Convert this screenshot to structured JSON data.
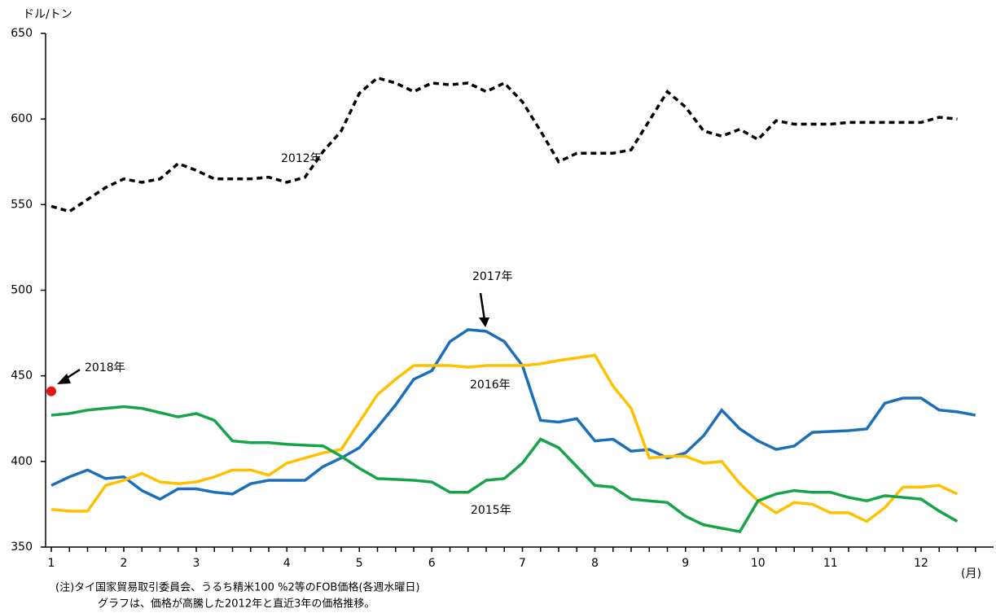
{
  "chart_data": {
    "type": "line",
    "y_label": "ドル/トン",
    "x_label": "(月)",
    "notes": [
      "(注)タイ国家貿易取引委員会、うるち精米100 %2等のFOB価格(各週水曜日)",
      "グラフは、価格が高騰した2012年と直近3年の価格推移。"
    ],
    "categories": [
      "1",
      null,
      null,
      null,
      "2",
      null,
      null,
      null,
      "3",
      null,
      null,
      null,
      null,
      "4",
      null,
      null,
      null,
      "5",
      null,
      null,
      null,
      "6",
      null,
      null,
      null,
      null,
      "7",
      null,
      null,
      null,
      "8",
      null,
      null,
      null,
      null,
      "9",
      null,
      null,
      null,
      "10",
      null,
      null,
      null,
      "11",
      null,
      null,
      null,
      null,
      "12",
      null,
      null,
      null
    ],
    "ylim": [
      350,
      650
    ],
    "yticks": [
      350,
      400,
      450,
      500,
      550,
      600,
      650
    ],
    "series": [
      {
        "name": "2012年",
        "color": "#000000",
        "dash": true,
        "values": [
          549,
          546,
          553,
          560,
          565,
          563,
          565,
          574,
          570,
          565,
          565,
          565,
          566,
          563,
          566,
          581,
          593,
          615,
          624,
          621,
          616,
          621,
          620,
          621,
          616,
          621,
          610,
          593,
          575,
          580,
          580,
          580,
          582,
          599,
          616,
          607,
          593,
          590,
          594,
          588,
          599,
          597,
          597,
          597,
          598,
          598,
          598,
          598,
          598,
          601,
          600,
          null
        ]
      },
      {
        "name": "2017年",
        "color": "#1a6fb8",
        "values": [
          386,
          391,
          395,
          390,
          391,
          383,
          378,
          384,
          384,
          382,
          381,
          387,
          389,
          389,
          389,
          397,
          402,
          408,
          420,
          433,
          448,
          453,
          470,
          477,
          476,
          470,
          456,
          424,
          423,
          425,
          412,
          413,
          406,
          407,
          402,
          405,
          415,
          430,
          419,
          412,
          407,
          409,
          417,
          417.5,
          418,
          419,
          434,
          437,
          437,
          430,
          429,
          427
        ]
      },
      {
        "name": "2016年",
        "color": "#ffc000",
        "values": [
          372,
          371,
          371,
          386,
          389,
          393,
          388,
          387,
          388,
          391,
          395,
          395,
          392,
          399,
          402,
          405,
          407,
          423,
          439,
          448,
          456,
          456,
          456,
          455,
          456,
          456,
          456,
          457,
          459,
          460.5,
          462,
          444,
          431,
          402,
          403,
          403,
          399,
          400,
          387,
          377,
          370,
          376,
          375,
          370,
          370,
          365,
          373,
          385,
          385,
          386,
          381,
          null
        ]
      },
      {
        "name": "2015年",
        "color": "#17a34a",
        "values": [
          427,
          428,
          430,
          431,
          432,
          431,
          428.5,
          426,
          428,
          424,
          412,
          411,
          411,
          410,
          409.5,
          409,
          403,
          396,
          390,
          389.5,
          389,
          388,
          382,
          382,
          389,
          390,
          399,
          413,
          408,
          397,
          386,
          385,
          378,
          377,
          376,
          368,
          363,
          361,
          359,
          377,
          381,
          383,
          382,
          382,
          379,
          377,
          380,
          379,
          378,
          371,
          365,
          null
        ]
      },
      {
        "name": "2018年",
        "color": "#e8141a",
        "marker": true,
        "values": [
          441,
          null,
          null,
          null,
          null,
          null,
          null,
          null,
          null,
          null,
          null,
          null,
          null,
          null,
          null,
          null,
          null,
          null,
          null,
          null,
          null,
          null,
          null,
          null,
          null,
          null,
          null,
          null,
          null,
          null,
          null,
          null,
          null,
          null,
          null,
          null,
          null,
          null,
          null,
          null,
          null,
          null,
          null,
          null,
          null,
          null,
          null,
          null,
          null,
          null,
          null,
          null
        ]
      }
    ]
  }
}
